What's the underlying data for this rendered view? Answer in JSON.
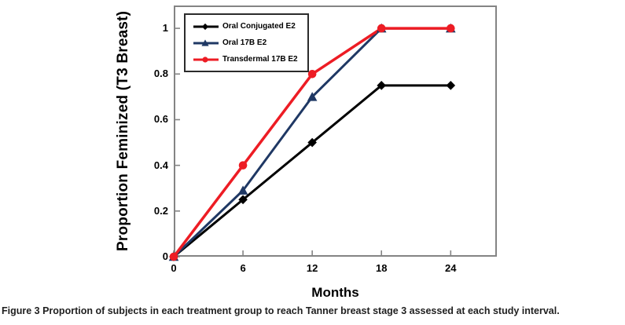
{
  "figure": {
    "caption_prefix": "Figure 3",
    "caption_text": " Proportion of subjects in each treatment group to reach Tanner breast stage 3 assessed at each study interval."
  },
  "chart_data": {
    "type": "line",
    "title": "",
    "xlabel": "Months",
    "ylabel": "Proportion Feminized (T3 Breast)",
    "xlim": [
      0,
      28
    ],
    "ylim": [
      0,
      1.1
    ],
    "grid": false,
    "legend_position": "top-left-inside",
    "axis_color": "#848484",
    "x_ticks": [
      0,
      6,
      12,
      18,
      24
    ],
    "x_tick_labels": [
      "0",
      "6",
      "12",
      "18",
      "24"
    ],
    "y_ticks": [
      0,
      0.2,
      0.4,
      0.6,
      0.8,
      1
    ],
    "y_tick_labels": [
      "0",
      "0.2",
      "0.4",
      "0.6",
      "0.8",
      "1"
    ],
    "x": [
      0,
      6,
      12,
      18,
      24
    ],
    "series": [
      {
        "name": "Oral Conjugated E2",
        "color": "#000000",
        "marker": "diamond",
        "line_width": 3,
        "values": [
          0,
          0.25,
          0.5,
          0.75,
          0.75
        ]
      },
      {
        "name": "Oral 17B E2",
        "color": "#1F3864",
        "marker": "triangle-up",
        "line_width": 3,
        "values": [
          0,
          0.29,
          0.7,
          1,
          1
        ]
      },
      {
        "name": "Transdermal 17B E2",
        "color": "#ED1C24",
        "marker": "circle",
        "line_width": 3.5,
        "values": [
          0,
          0.4,
          0.8,
          1,
          1
        ]
      }
    ]
  }
}
